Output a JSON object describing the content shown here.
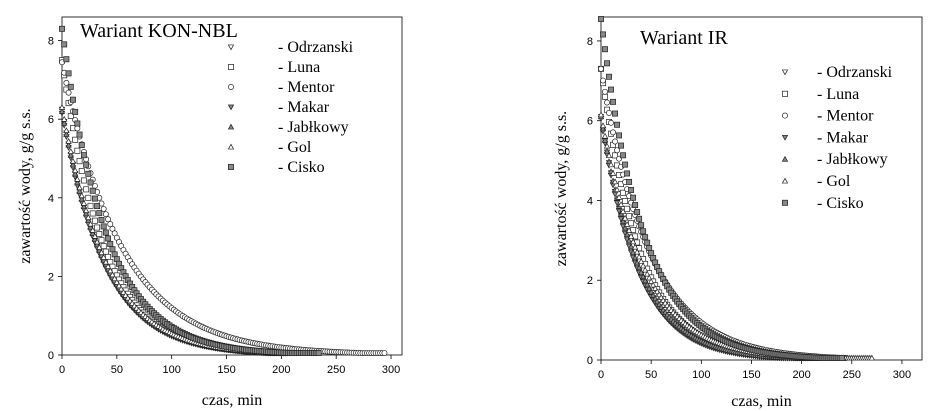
{
  "chart_data": [
    {
      "type": "scatter",
      "title": "Wariant KON-NBL",
      "xlabel": "czas, min",
      "ylabel": "zawartość wody, g/g s.s.",
      "xlim": [
        0,
        310
      ],
      "ylim": [
        0,
        8.6
      ],
      "xticks": [
        "0",
        "50",
        "100",
        "150",
        "200",
        "250",
        "300"
      ],
      "yticks": [
        "0",
        "2",
        "4",
        "6",
        "8"
      ],
      "grid": false,
      "legend_position": "top-right",
      "series": [
        {
          "name": "- Odrzanski",
          "marker": "triangle-down",
          "y0": 6.25,
          "k": 0.0253,
          "x_end": 215
        },
        {
          "name": "- Luna",
          "marker": "square",
          "y0": 7.5,
          "k": 0.0262,
          "x_end": 220
        },
        {
          "name": "- Mentor",
          "marker": "circle",
          "y0": 7.45,
          "k": 0.0183,
          "x_end": 295
        },
        {
          "name": "- Makar",
          "marker": "triangle-down-filled",
          "y0": 6.15,
          "k": 0.0255,
          "x_end": 205
        },
        {
          "name": "- Jabłkowy",
          "marker": "triangle-up-filled",
          "y0": 6.2,
          "k": 0.0248,
          "x_end": 215
        },
        {
          "name": "- Gol",
          "marker": "triangle-up",
          "y0": 6.3,
          "k": 0.0245,
          "x_end": 220
        },
        {
          "name": "- Cisko",
          "marker": "square-filled",
          "y0": 8.3,
          "k": 0.0245,
          "x_end": 235
        }
      ]
    },
    {
      "type": "scatter",
      "title": "Wariant IR",
      "xlabel": "czas, min",
      "ylabel": "zawartość wody, g/g s.s.",
      "xlim": [
        0,
        320
      ],
      "ylim": [
        0,
        8.6
      ],
      "xticks": [
        "0",
        "50",
        "100",
        "150",
        "200",
        "250",
        "300"
      ],
      "yticks": [
        "0",
        "2",
        "4",
        "6",
        "8"
      ],
      "grid": false,
      "legend_position": "top-right",
      "series": [
        {
          "name": "- Odrzanski",
          "marker": "triangle-down",
          "y0": 6.1,
          "k": 0.0262,
          "x_end": 210
        },
        {
          "name": "- Luna",
          "marker": "square",
          "y0": 7.3,
          "k": 0.0252,
          "x_end": 220
        },
        {
          "name": "- Mentor",
          "marker": "circle",
          "y0": 7.3,
          "k": 0.0205,
          "x_end": 245
        },
        {
          "name": "- Makar",
          "marker": "triangle-down-filled",
          "y0": 6.05,
          "k": 0.0268,
          "x_end": 205
        },
        {
          "name": "- Jabłkowy",
          "marker": "triangle-up-filled",
          "y0": 6.1,
          "k": 0.0255,
          "x_end": 215
        },
        {
          "name": "- Gol",
          "marker": "triangle-up",
          "y0": 6.15,
          "k": 0.0228,
          "x_end": 270
        },
        {
          "name": "- Cisko",
          "marker": "square-filled",
          "y0": 8.55,
          "k": 0.0232,
          "x_end": 240
        }
      ]
    }
  ]
}
